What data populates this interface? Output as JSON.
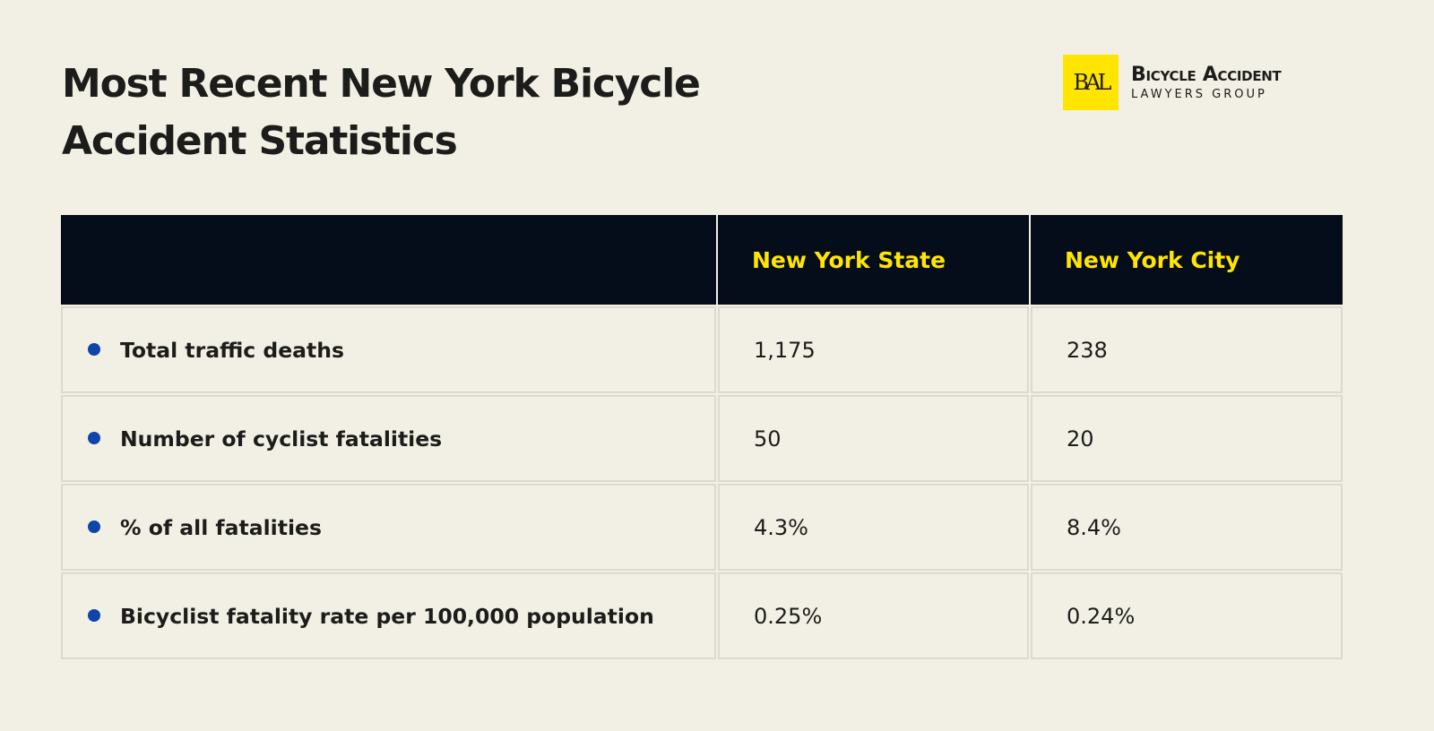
{
  "title": "Most Recent New York Bicycle Accident Statistics",
  "logo": {
    "mark": "BAL",
    "main": "Bicycle Accident",
    "sub": "LAWYERS GROUP"
  },
  "colors": {
    "header_bg": "#050d1a",
    "header_text": "#ffe500",
    "bullet": "#0f44a8",
    "background": "#f2f0e5"
  },
  "table": {
    "headers": [
      "",
      "New York State",
      "New York City"
    ],
    "rows": [
      {
        "label": "Total traffic deaths",
        "state": "1,175",
        "city": "238"
      },
      {
        "label": "Number of cyclist fatalities",
        "state": "50",
        "city": "20"
      },
      {
        "label": "% of all fatalities",
        "state": "4.3%",
        "city": "8.4%"
      },
      {
        "label": "Bicyclist fatality rate per 100,000 population",
        "state": "0.25%",
        "city": "0.24%"
      }
    ]
  }
}
